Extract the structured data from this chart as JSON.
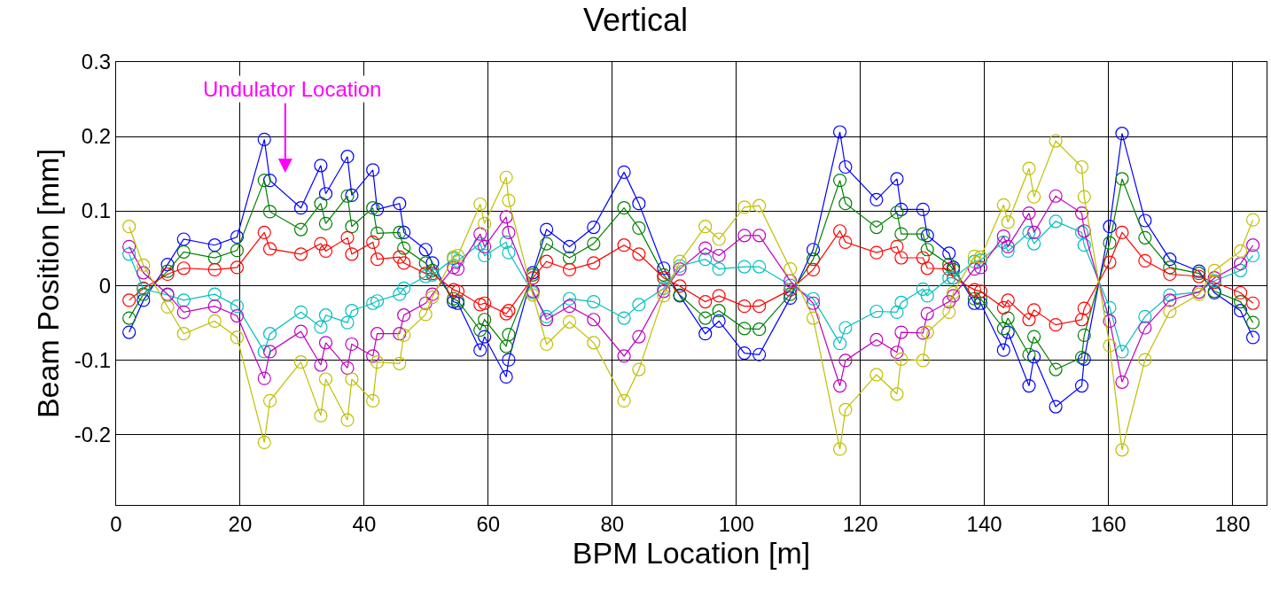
{
  "chart_data": {
    "type": "line",
    "title": "Vertical",
    "xlabel": "BPM Location [m]",
    "ylabel": "Beam Position [mm]",
    "x": [
      2.1,
      4.4,
      8.3,
      10.9,
      15.9,
      19.5,
      23.9,
      24.8,
      29.8,
      33,
      33.8,
      37.3,
      38,
      41.4,
      42.1,
      45.7,
      46.4,
      49.9,
      51,
      54.4,
      55.1,
      58.7,
      59.4,
      62.9,
      63.3,
      67.2,
      69.4,
      73.1,
      77,
      81.9,
      84.3,
      88.3,
      90.9,
      95,
      97.2,
      101.3,
      103.7,
      108.7,
      112.4,
      116.7,
      117.6,
      122.6,
      125.9,
      126.6,
      130.1,
      130.8,
      134.3,
      135,
      138.4,
      139.4,
      143.1,
      143.8,
      147.2,
      148,
      151.5,
      155.7,
      156.1,
      160.2,
      162.2,
      165.9,
      169.9,
      174.6,
      177.1,
      181.3,
      183.3
    ],
    "series": [
      {
        "color": "#0000ff",
        "values": [
          -0.063,
          -0.02,
          0.028,
          0.062,
          0.054,
          0.065,
          0.196,
          0.141,
          0.104,
          0.161,
          0.123,
          0.173,
          0.121,
          0.155,
          0.102,
          0.11,
          0.071,
          0.048,
          0.03,
          -0.022,
          -0.024,
          -0.087,
          -0.069,
          -0.123,
          -0.1,
          0.017,
          0.075,
          0.052,
          0.078,
          0.152,
          0.11,
          0.023,
          -0.014,
          -0.065,
          -0.048,
          -0.091,
          -0.093,
          -0.017,
          0.048,
          0.206,
          0.159,
          0.115,
          0.143,
          0.102,
          0.102,
          0.067,
          0.043,
          0.024,
          -0.024,
          -0.024,
          -0.087,
          -0.063,
          -0.135,
          -0.096,
          -0.163,
          -0.135,
          -0.099,
          0.079,
          0.204,
          0.087,
          0.035,
          0.019,
          -0.01,
          -0.034,
          -0.07
        ]
      },
      {
        "color": "#008000",
        "values": [
          -0.044,
          -0.012,
          0.019,
          0.045,
          0.037,
          0.047,
          0.141,
          0.099,
          0.075,
          0.11,
          0.083,
          0.12,
          0.079,
          0.104,
          0.07,
          0.071,
          0.05,
          0.03,
          0.02,
          -0.018,
          -0.021,
          -0.06,
          -0.046,
          -0.082,
          -0.066,
          0.014,
          0.056,
          0.037,
          0.056,
          0.104,
          0.077,
          0.014,
          -0.013,
          -0.044,
          -0.034,
          -0.058,
          -0.059,
          -0.012,
          0.035,
          0.141,
          0.11,
          0.078,
          0.098,
          0.069,
          0.069,
          0.048,
          0.028,
          0.021,
          -0.018,
          -0.018,
          -0.058,
          -0.044,
          -0.093,
          -0.069,
          -0.113,
          -0.097,
          -0.067,
          0.057,
          0.143,
          0.064,
          0.024,
          0.016,
          -0.008,
          -0.022,
          -0.05
        ]
      },
      {
        "color": "#ff0000",
        "values": [
          -0.02,
          -0.004,
          0.015,
          0.023,
          0.021,
          0.024,
          0.071,
          0.049,
          0.042,
          0.056,
          0.046,
          0.064,
          0.042,
          0.058,
          0.035,
          0.038,
          0.03,
          0.016,
          0.016,
          -0.006,
          -0.008,
          -0.026,
          -0.024,
          -0.038,
          -0.034,
          0.01,
          0.032,
          0.021,
          0.03,
          0.054,
          0.042,
          0.01,
          -0.001,
          -0.022,
          -0.014,
          -0.028,
          -0.028,
          -0.006,
          0.021,
          0.073,
          0.058,
          0.044,
          0.052,
          0.037,
          0.037,
          0.023,
          0.022,
          0.01,
          -0.006,
          -0.008,
          -0.03,
          -0.02,
          -0.046,
          -0.033,
          -0.053,
          -0.046,
          -0.031,
          0.031,
          0.071,
          0.033,
          0.015,
          0.012,
          0.004,
          -0.01,
          -0.024
        ]
      },
      {
        "color": "#00bfbf",
        "values": [
          0.042,
          -0.005,
          -0.013,
          -0.02,
          -0.012,
          -0.028,
          -0.089,
          -0.065,
          -0.036,
          -0.056,
          -0.04,
          -0.05,
          -0.034,
          -0.024,
          -0.021,
          -0.012,
          -0.004,
          0.012,
          0.014,
          0.036,
          0.033,
          0.056,
          0.04,
          0.058,
          0.044,
          -0.01,
          -0.042,
          -0.018,
          -0.022,
          -0.044,
          -0.026,
          -0.004,
          0.026,
          0.035,
          0.022,
          0.025,
          0.025,
          0,
          -0.018,
          -0.078,
          -0.057,
          -0.035,
          -0.036,
          -0.023,
          -0.005,
          -0.014,
          0.01,
          0.01,
          0.032,
          0.034,
          0.058,
          0.046,
          0.071,
          0.056,
          0.086,
          0.071,
          0.054,
          -0.03,
          -0.089,
          -0.042,
          -0.013,
          -0.009,
          0.006,
          0.02,
          0.04
        ]
      },
      {
        "color": "#bf00bf",
        "values": [
          0.052,
          0.017,
          -0.012,
          -0.036,
          -0.028,
          -0.041,
          -0.125,
          -0.089,
          -0.062,
          -0.107,
          -0.077,
          -0.111,
          -0.079,
          -0.095,
          -0.065,
          -0.065,
          -0.04,
          -0.024,
          -0.012,
          0.024,
          0.022,
          0.069,
          0.052,
          0.092,
          0.071,
          -0.008,
          -0.046,
          -0.028,
          -0.046,
          -0.095,
          -0.069,
          -0.008,
          0.022,
          0.05,
          0.04,
          0.067,
          0.067,
          0.006,
          -0.024,
          -0.135,
          -0.101,
          -0.073,
          -0.09,
          -0.063,
          -0.064,
          -0.038,
          -0.022,
          -0.014,
          0.022,
          0.024,
          0.066,
          0.052,
          0.097,
          0.071,
          0.12,
          0.097,
          0.073,
          -0.048,
          -0.13,
          -0.057,
          -0.02,
          -0.009,
          0.01,
          0.029,
          0.054
        ]
      },
      {
        "color": "#bfbf00",
        "values": [
          0.079,
          0.027,
          -0.029,
          -0.065,
          -0.048,
          -0.07,
          -0.211,
          -0.155,
          -0.103,
          -0.175,
          -0.126,
          -0.181,
          -0.126,
          -0.155,
          -0.103,
          -0.105,
          -0.067,
          -0.039,
          -0.016,
          0.038,
          0.04,
          0.109,
          0.083,
          0.145,
          0.114,
          -0.013,
          -0.079,
          -0.049,
          -0.077,
          -0.155,
          -0.113,
          -0.014,
          0.032,
          0.079,
          0.062,
          0.105,
          0.107,
          0.022,
          -0.044,
          -0.22,
          -0.167,
          -0.12,
          -0.146,
          -0.099,
          -0.101,
          -0.063,
          -0.036,
          -0.01,
          0.039,
          0.038,
          0.108,
          0.085,
          0.157,
          0.119,
          0.194,
          0.159,
          0.119,
          -0.081,
          -0.221,
          -0.1,
          -0.035,
          -0.012,
          0.02,
          0.046,
          0.088
        ]
      }
    ],
    "annotations": [
      "Undulator Location"
    ],
    "xlim": [
      0,
      185.5
    ],
    "xticks": [
      0,
      20,
      40,
      60,
      80,
      100,
      120,
      140,
      160,
      180
    ],
    "ylim": [
      -0.295,
      0.3
    ],
    "yticks": [
      -0.2,
      -0.1,
      0,
      0.1,
      0.2,
      0.3
    ],
    "grid": true,
    "marker": "circle",
    "line_style": "solid"
  }
}
